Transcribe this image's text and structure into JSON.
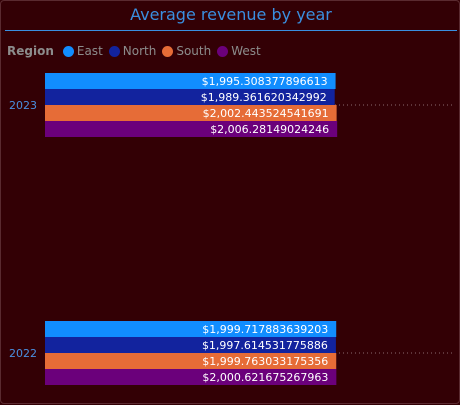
{
  "chart_data": {
    "type": "bar",
    "orientation": "horizontal",
    "title": "Average revenue by year",
    "legend": {
      "title": "Region",
      "placement": "top-left",
      "entries": [
        "East",
        "North",
        "South",
        "West"
      ]
    },
    "categories": [
      "2023",
      "2022"
    ],
    "series": [
      {
        "name": "East",
        "color": "#118dff",
        "values": [
          1995.308377896613,
          1999.717883639203
        ],
        "labels": [
          "$1,995.308377896613",
          "$1,999.717883639203"
        ]
      },
      {
        "name": "North",
        "color": "#12239e",
        "values": [
          1989.361620342992,
          1997.614531775886
        ],
        "labels": [
          "$1,989.361620342992",
          "$1,997.614531775886"
        ]
      },
      {
        "name": "South",
        "color": "#e66c37",
        "values": [
          2002.443524541691,
          1999.763033175356
        ],
        "labels": [
          "$2,002.443524541691",
          "$1,999.763033175356"
        ]
      },
      {
        "name": "West",
        "color": "#6b007b",
        "values": [
          2006.28149024246,
          2000.621675267963
        ],
        "labels": [
          "$2,006.28149024246",
          "$2,000.621675267963"
        ]
      }
    ],
    "xlim": [
      0,
      2060
    ],
    "grid": false
  }
}
